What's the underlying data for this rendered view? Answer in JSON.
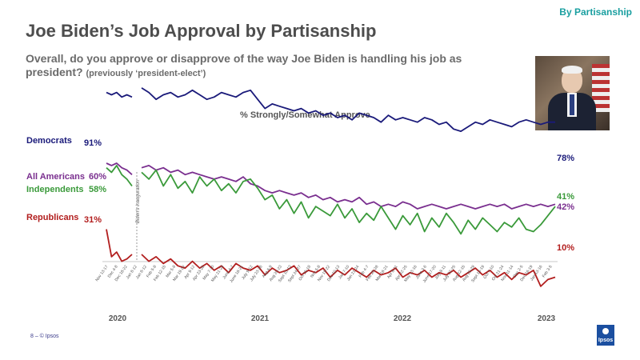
{
  "header": {
    "tag": "By Partisanship",
    "title": "Joe Biden’s Job Approval by Partisanship",
    "question": "Overall, do you approve or disapprove of the way Joe Biden is handling his job as president?",
    "question_note": "(previously ‘president-elect’)"
  },
  "footer": {
    "text": "8 –  © Ipsos",
    "logo": "Ipsos"
  },
  "colors": {
    "democrats": "#1a1a7a",
    "all_americans": "#7a2f8f",
    "independents": "#3a9a3a",
    "republicans": "#b21e1e"
  },
  "chart_data": {
    "type": "line",
    "title": "% Strongly/Somewhat Approve",
    "marker_label": "Biden's inauguration",
    "years": [
      "2020",
      "2021",
      "2022",
      "2023"
    ],
    "x_ticks": [
      "Nov 13-17",
      "Dec 4-8",
      "Dec 18-22",
      "Jan 8-12",
      "Jan 8-12",
      "Feb 5-8",
      "Feb 12-15",
      "Mar 5-8",
      "Mar 19-22",
      "Apr 9-12",
      "Apr 23-26",
      "May 7-10",
      "May 21-24",
      "June 4-7",
      "June 18-21",
      "July 9-12",
      "July 23-26",
      "Aug 6-9",
      "Aug 20-23",
      "Sept 10-13",
      "Sept 24-27",
      "Oct 15-18",
      "Nov 5-8",
      "Nov 19-22",
      "Dec 10-13",
      "Jan 7-10",
      "Jan 21-24",
      "Feb 4-7",
      "Feb 25-28",
      "Mar 18-21",
      "Apr 8-11",
      "Apr 22-25",
      "May 13-16",
      "June 3-6",
      "June 17-20",
      "July 8-11",
      "July 22-25",
      "Aug 12-15",
      "Aug 26-29",
      "Sept 16-19",
      "Oct 7-10",
      "Oct 21-24",
      "Nov 11-14",
      "Dec 2-5",
      "Dec 16-19",
      "Jan 13-16",
      "Feb 3-5"
    ],
    "series": [
      {
        "name": "Democrats",
        "start_label": "91%",
        "end_label": "78%",
        "pre": [
          91,
          90,
          91,
          89,
          90,
          89
        ],
        "values": [
          93,
          91,
          88,
          90,
          91,
          89,
          90,
          92,
          90,
          88,
          89,
          91,
          90,
          89,
          91,
          92,
          88,
          84,
          86,
          85,
          84,
          83,
          84,
          82,
          83,
          81,
          82,
          80,
          81,
          79,
          82,
          81,
          80,
          78,
          81,
          79,
          80,
          79,
          78,
          80,
          79,
          77,
          78,
          75,
          74,
          76,
          78,
          77,
          79,
          78,
          77,
          76,
          78,
          79,
          78,
          77,
          78,
          78
        ]
      },
      {
        "name": "All Americans",
        "start_label": "60%",
        "end_label": "42%",
        "pre": [
          60,
          59,
          60,
          58,
          57,
          55
        ],
        "values": [
          58,
          59,
          57,
          58,
          56,
          57,
          55,
          56,
          55,
          54,
          53,
          54,
          53,
          52,
          54,
          51,
          50,
          48,
          47,
          48,
          47,
          46,
          47,
          45,
          46,
          44,
          45,
          43,
          44,
          43,
          45,
          42,
          43,
          41,
          42,
          41,
          43,
          42,
          40,
          41,
          42,
          41,
          40,
          41,
          42,
          41,
          40,
          41,
          42,
          41,
          42,
          40,
          41,
          42,
          41,
          42,
          41,
          42
        ]
      },
      {
        "name": "Independents",
        "start_label": "58%",
        "end_label": "41%",
        "pre": [
          58,
          56,
          59,
          55,
          53,
          50
        ],
        "values": [
          56,
          53,
          57,
          50,
          55,
          49,
          52,
          47,
          54,
          50,
          53,
          48,
          51,
          47,
          52,
          53,
          49,
          44,
          46,
          40,
          44,
          38,
          43,
          36,
          41,
          39,
          37,
          42,
          36,
          40,
          34,
          38,
          35,
          41,
          36,
          31,
          37,
          33,
          38,
          30,
          36,
          32,
          38,
          34,
          29,
          35,
          31,
          36,
          33,
          30,
          34,
          32,
          36,
          31,
          30,
          33,
          37,
          41
        ]
      },
      {
        "name": "Republicans",
        "start_label": "31%",
        "end_label": "10%",
        "pre": [
          31,
          19,
          21,
          17,
          18,
          20
        ],
        "values": [
          20,
          17,
          19,
          16,
          18,
          15,
          14,
          17,
          14,
          16,
          13,
          15,
          12,
          16,
          14,
          13,
          15,
          11,
          14,
          12,
          13,
          15,
          11,
          13,
          12,
          14,
          10,
          13,
          11,
          14,
          12,
          10,
          13,
          11,
          12,
          14,
          10,
          12,
          11,
          13,
          10,
          12,
          11,
          13,
          10,
          12,
          14,
          11,
          13,
          10,
          12,
          9,
          12,
          11,
          13,
          6,
          9,
          10
        ]
      }
    ],
    "ylim": [
      0,
      100
    ],
    "grid": false,
    "legend": "left labels"
  }
}
